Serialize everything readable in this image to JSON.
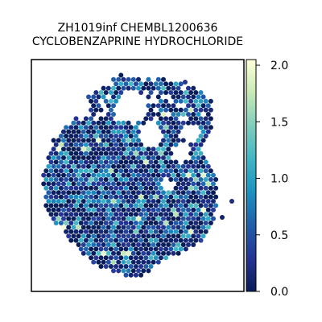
{
  "chart_data": {
    "type": "heatmap",
    "title_lines": [
      "ZH1019inf CHEMBL1200636",
      "CYCLOBENZAPRINE HYDROCHLORIDE"
    ],
    "colorbar": {
      "vmin": 0.0,
      "vmax": 2.05,
      "ticks": [
        0.0,
        0.5,
        1.0,
        1.5,
        2.0
      ],
      "tick_labels": [
        "0.0",
        "0.5",
        "1.0",
        "1.5",
        "2.0"
      ],
      "colormap": "YlGnBu",
      "colors": [
        "#081d58",
        "#253494",
        "#225ea8",
        "#1d91c0",
        "#41b6c4",
        "#7fcdbb",
        "#c7e9b4",
        "#ffffd9"
      ]
    },
    "grid": false,
    "axes_ticks_visible": false,
    "mean_expression": 0.3
  }
}
